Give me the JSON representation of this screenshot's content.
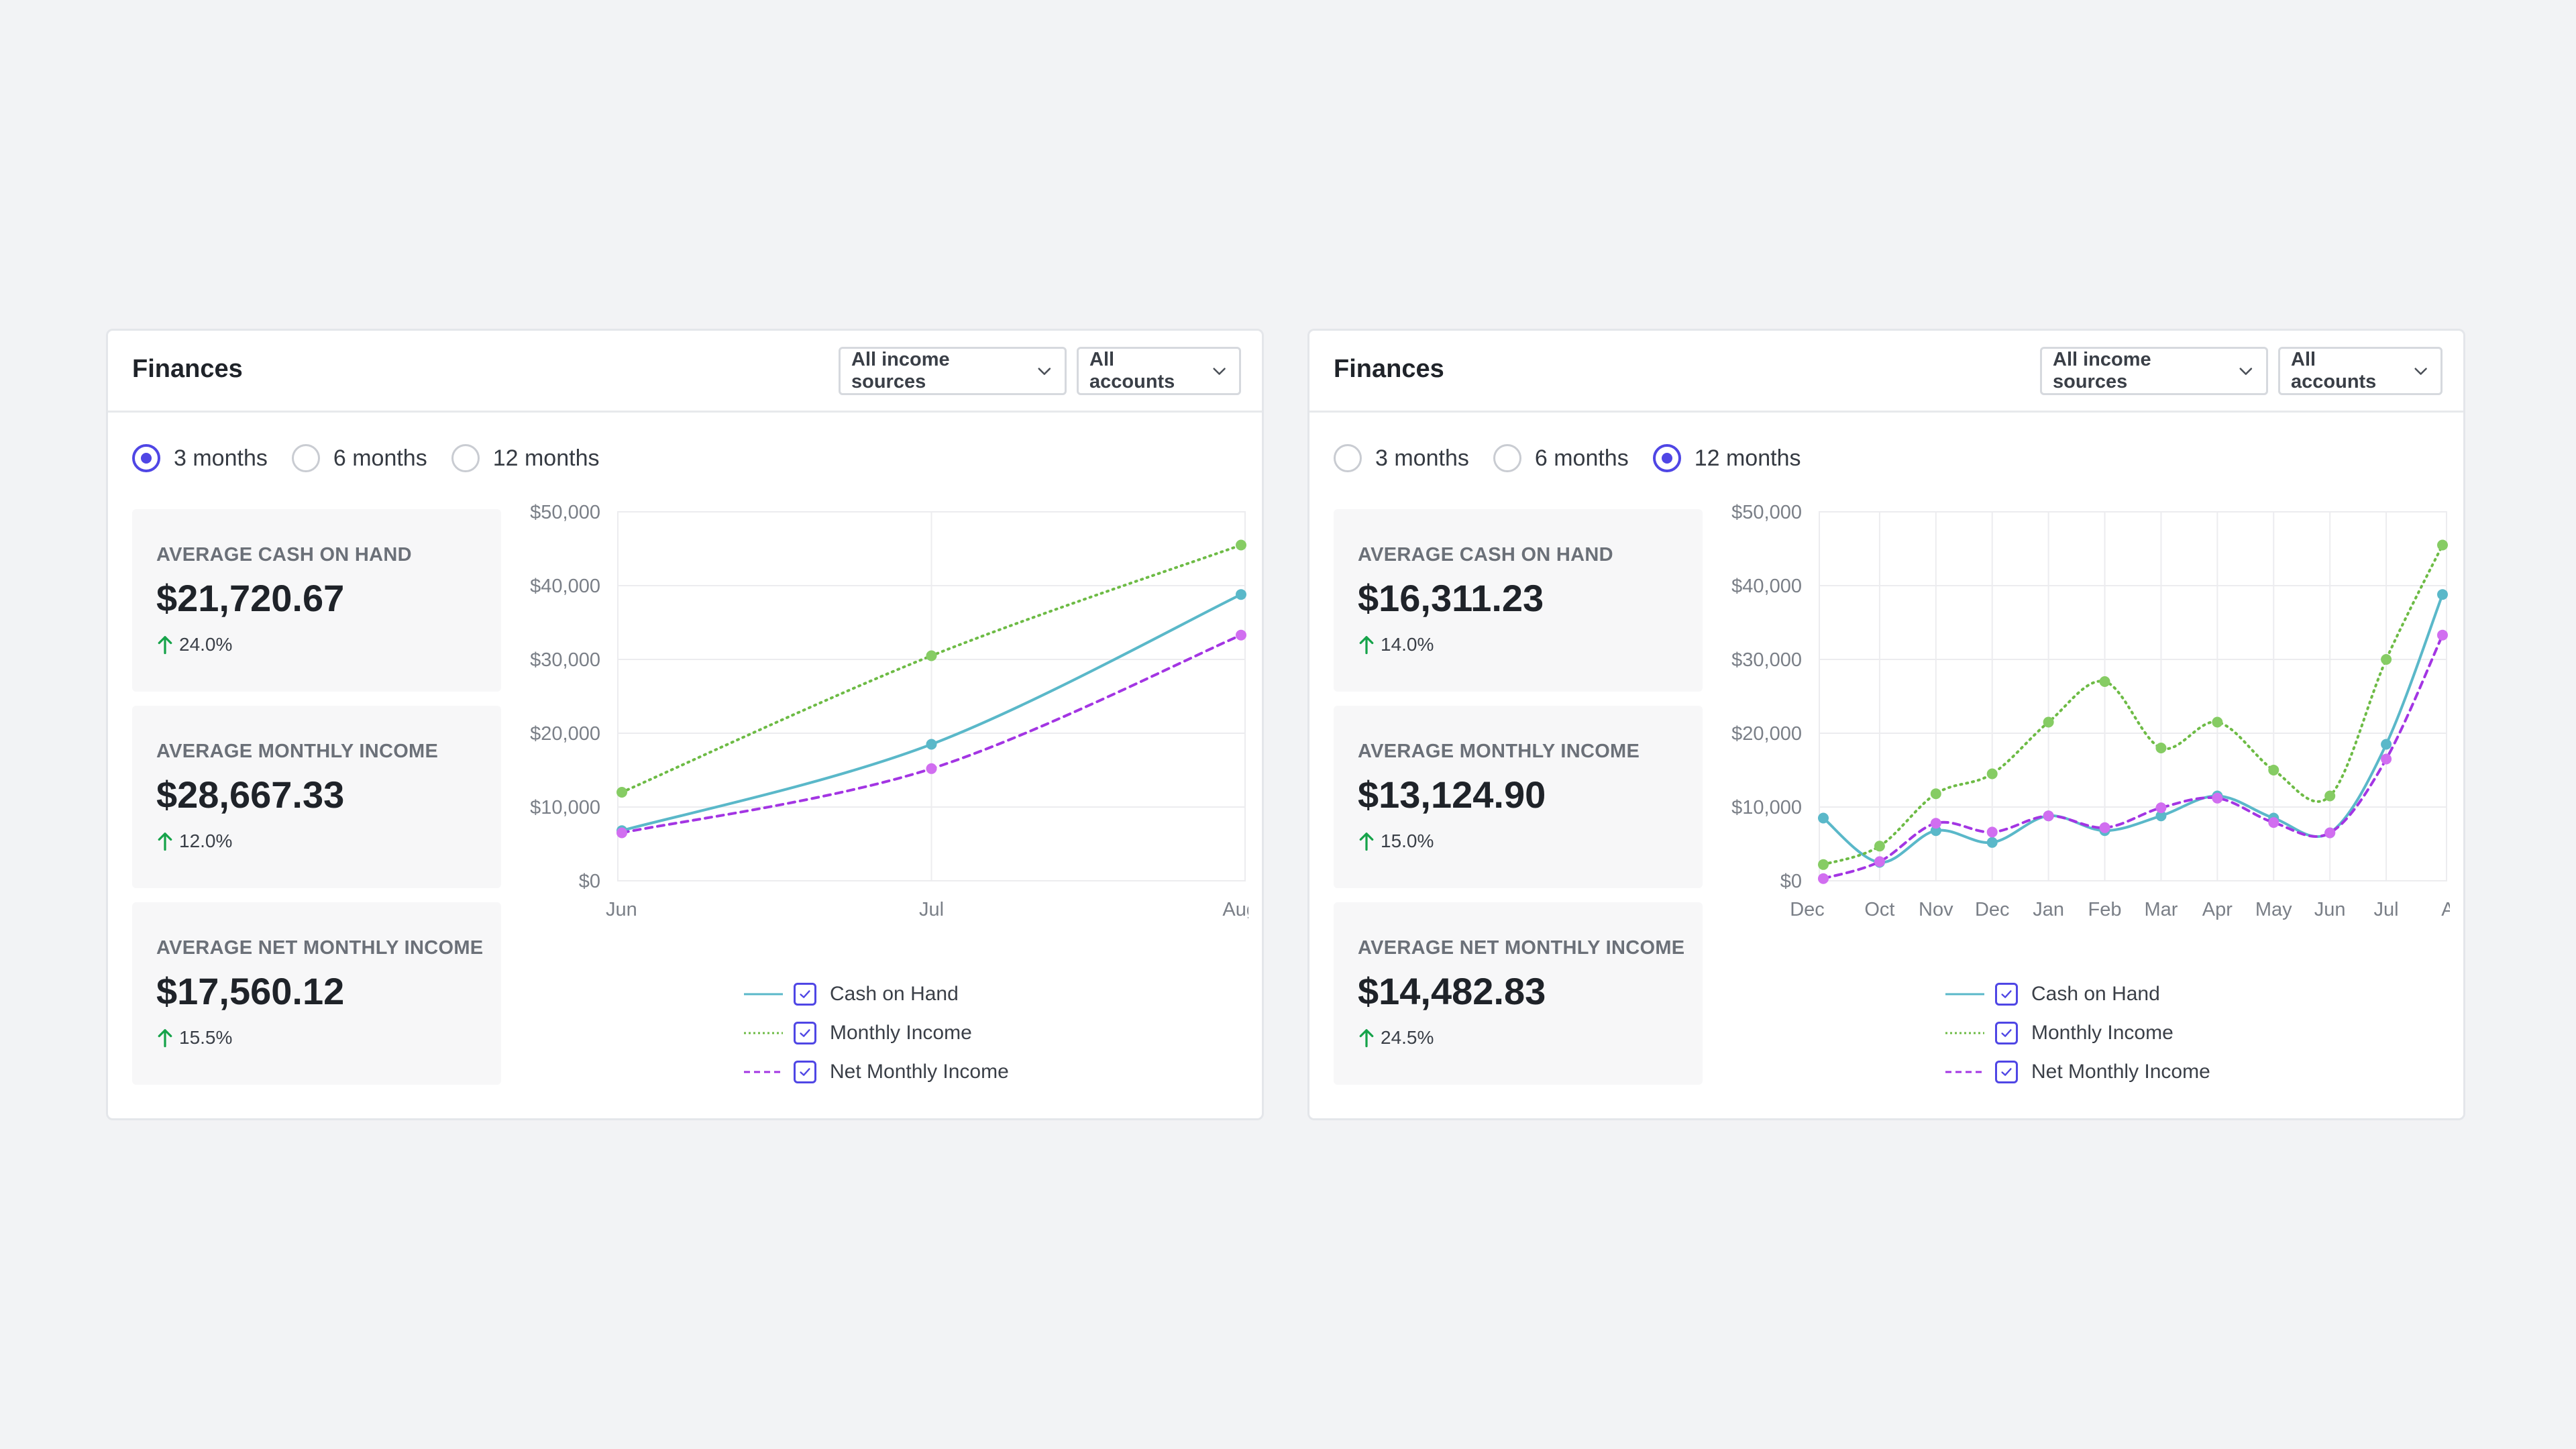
{
  "panels": [
    {
      "title": "Finances",
      "sources_select": "All income sources",
      "accounts_select": "All accounts",
      "ranges": [
        {
          "label": "3 months",
          "selected": true
        },
        {
          "label": "6 months",
          "selected": false
        },
        {
          "label": "12 months",
          "selected": false
        }
      ],
      "stats": [
        {
          "label": "AVERAGE CASH ON HAND",
          "value": "$21,720.67",
          "change": "24.0%"
        },
        {
          "label": "AVERAGE MONTHLY INCOME",
          "value": "$28,667.33",
          "change": "12.0%"
        },
        {
          "label": "AVERAGE NET MONTHLY INCOME",
          "value": "$17,560.12",
          "change": "15.5%"
        }
      ],
      "legend": [
        {
          "label": "Cash on Hand",
          "checked": true
        },
        {
          "label": "Monthly Income",
          "checked": true
        },
        {
          "label": "Net Monthly Income",
          "checked": true
        }
      ],
      "chart_data": {
        "type": "line",
        "categories": [
          "Jun",
          "Jul",
          "Aug"
        ],
        "ylim": [
          0,
          50000
        ],
        "yticks": [
          "$50,000",
          "$40,000",
          "$30,000",
          "$20,000",
          "$10,000",
          "$0"
        ],
        "grid": true,
        "legend_position": "bottom",
        "series": [
          {
            "name": "Cash on Hand",
            "color": "#5ab8c9",
            "style": "solid",
            "values": [
              6800,
              18500,
              38800
            ]
          },
          {
            "name": "Monthly Income",
            "color": "#6dbb45",
            "style": "dotted",
            "values": [
              12000,
              30500,
              45500
            ]
          },
          {
            "name": "Net Monthly Income",
            "color": "#a335e3",
            "style": "dashed",
            "values": [
              6500,
              15200,
              33300
            ]
          }
        ]
      }
    },
    {
      "title": "Finances",
      "sources_select": "All income sources",
      "accounts_select": "All accounts",
      "ranges": [
        {
          "label": "3 months",
          "selected": false
        },
        {
          "label": "6 months",
          "selected": false
        },
        {
          "label": "12 months",
          "selected": true
        }
      ],
      "stats": [
        {
          "label": "AVERAGE CASH ON HAND",
          "value": "$16,311.23",
          "change": "14.0%"
        },
        {
          "label": "AVERAGE MONTHLY INCOME",
          "value": "$13,124.90",
          "change": "15.0%"
        },
        {
          "label": "AVERAGE NET MONTHLY INCOME",
          "value": "$14,482.83",
          "change": "24.5%"
        }
      ],
      "legend": [
        {
          "label": "Cash on Hand",
          "checked": true
        },
        {
          "label": "Monthly Income",
          "checked": true
        },
        {
          "label": "Net Monthly Income",
          "checked": true
        }
      ],
      "chart_data": {
        "type": "line",
        "categories": [
          "Dec",
          "Oct",
          "Nov",
          "Dec",
          "Jan",
          "Feb",
          "Mar",
          "Apr",
          "May",
          "Jun",
          "Jul",
          "Aug"
        ],
        "ylim": [
          0,
          50000
        ],
        "yticks": [
          "$50,000",
          "$40,000",
          "$30,000",
          "$20,000",
          "$10,000",
          "$0"
        ],
        "grid": true,
        "legend_position": "bottom",
        "series": [
          {
            "name": "Cash on Hand",
            "color": "#5ab8c9",
            "style": "solid",
            "values": [
              8500,
              2500,
              6800,
              5200,
              8800,
              6800,
              8800,
              11500,
              8500,
              6500,
              18500,
              38800
            ]
          },
          {
            "name": "Monthly Income",
            "color": "#6dbb45",
            "style": "dotted",
            "values": [
              2200,
              4700,
              11800,
              14500,
              21500,
              27000,
              18000,
              21500,
              15000,
              11500,
              30000,
              45500
            ]
          },
          {
            "name": "Net Monthly Income",
            "color": "#a335e3",
            "style": "dashed",
            "values": [
              300,
              2600,
              7800,
              6600,
              8800,
              7200,
              9900,
              11200,
              7900,
              6500,
              16500,
              33300
            ]
          }
        ]
      }
    }
  ]
}
